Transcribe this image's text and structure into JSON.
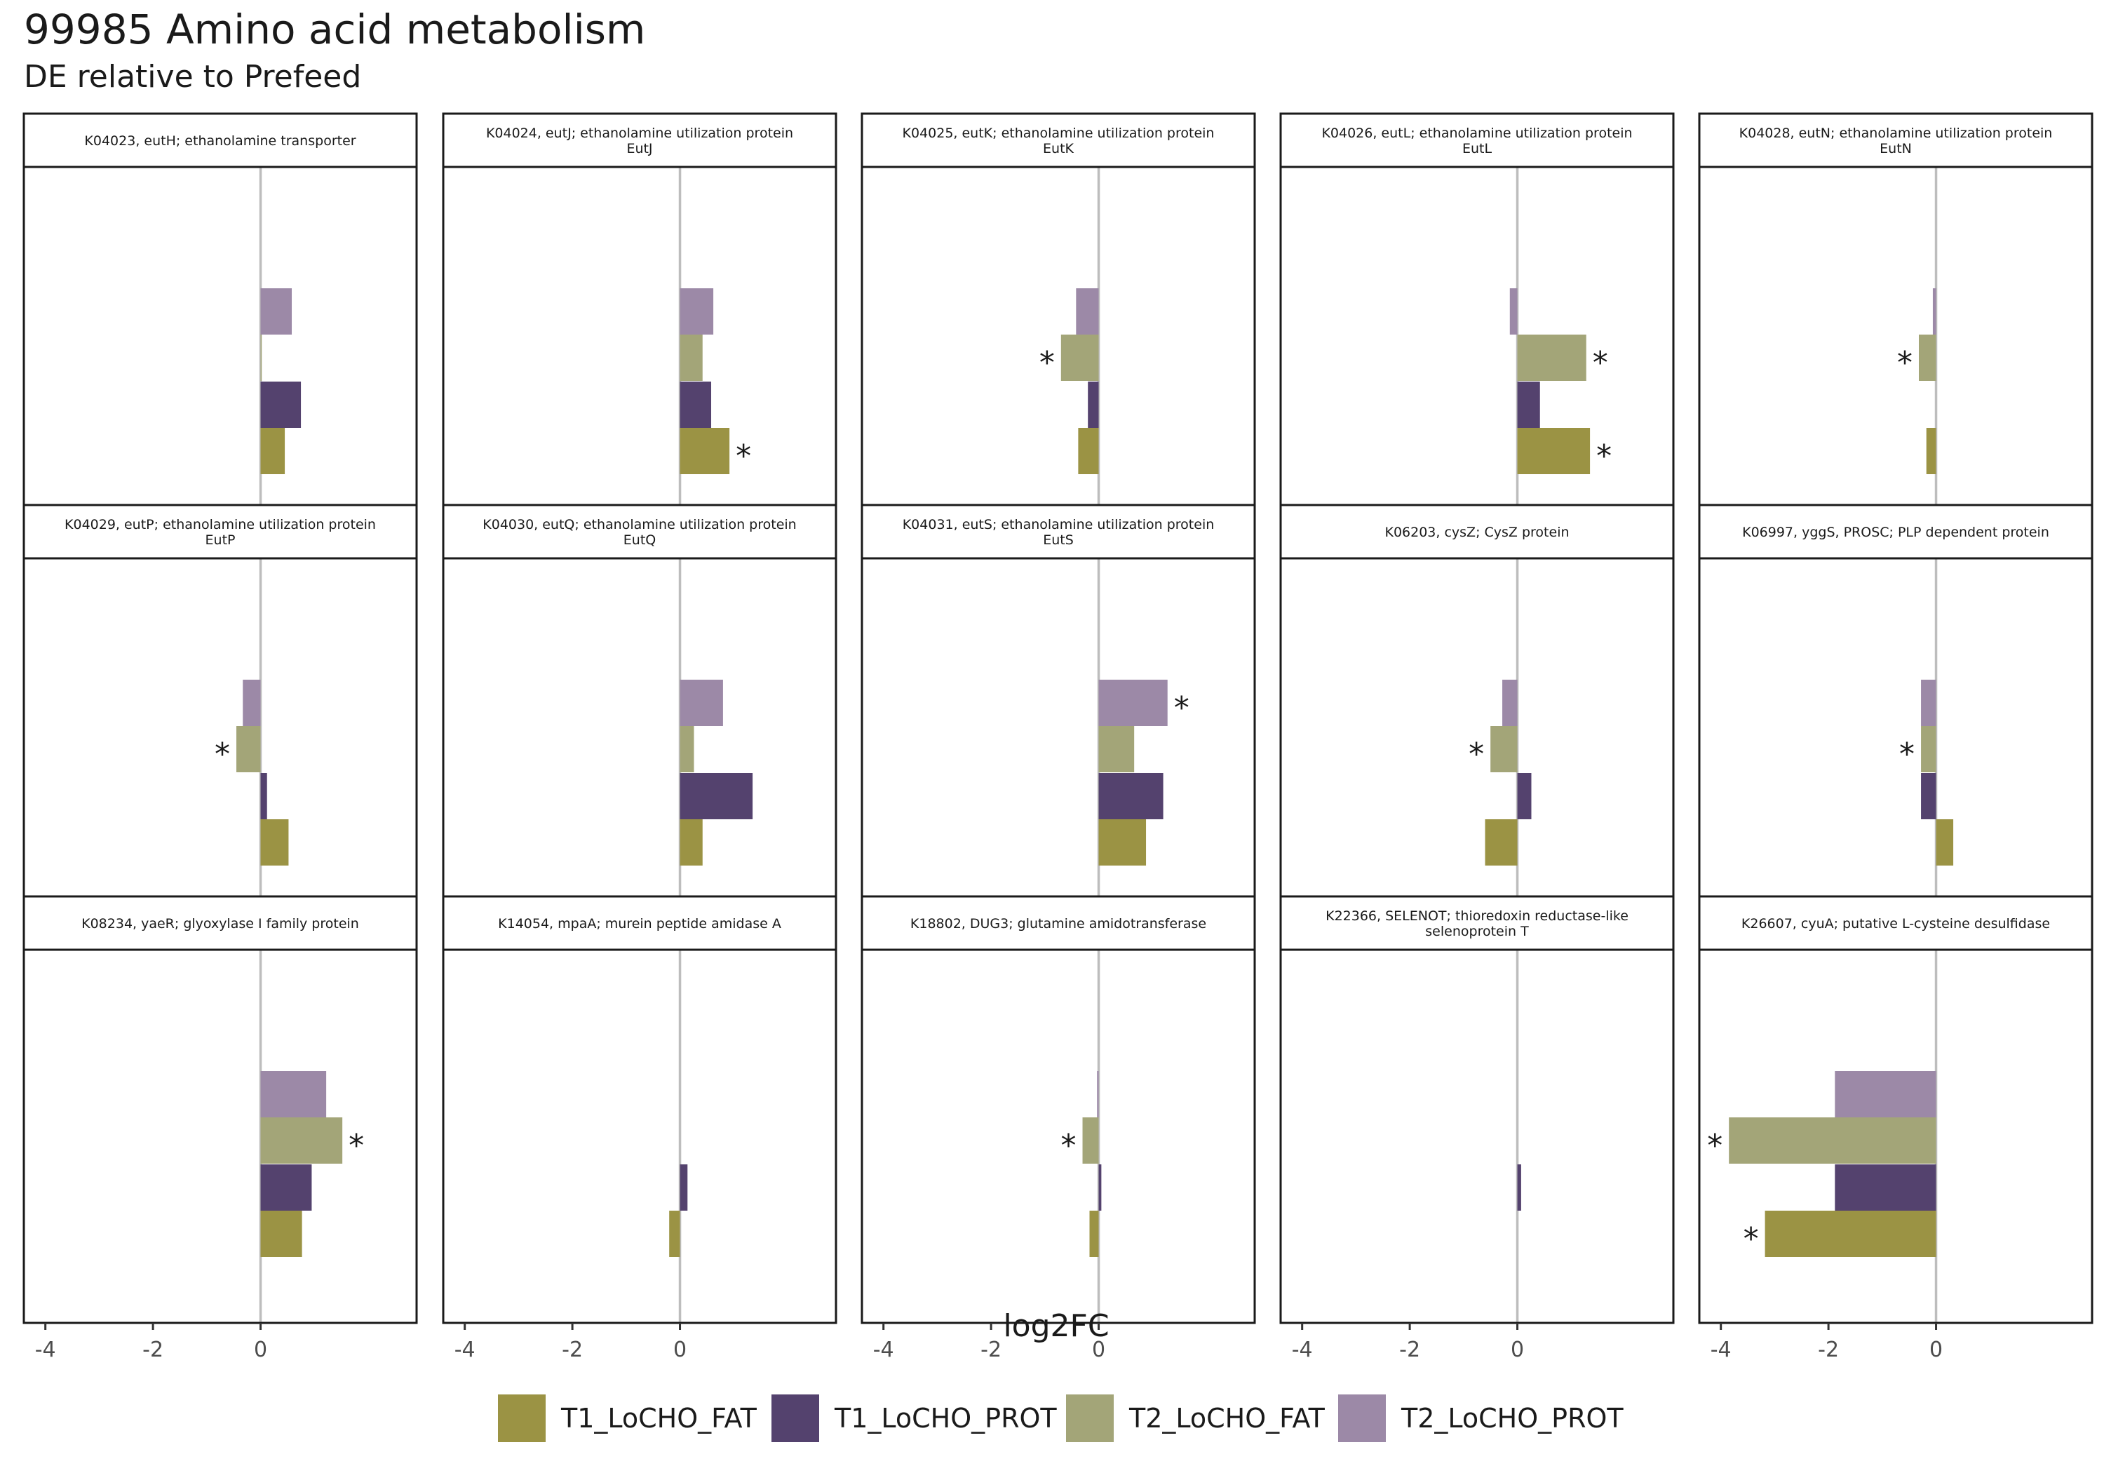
{
  "title": "99985 Amino acid metabolism",
  "subtitle": "DE relative to Prefeed",
  "chart_data": {
    "type": "bar",
    "orientation": "horizontal",
    "facet_layout": "3 rows x 5 columns",
    "xlabel": "log2FC",
    "ylabel": "",
    "xlim": [
      -4.4,
      2.9
    ],
    "x_ticks": [
      -4,
      -2,
      0
    ],
    "reference_line": 0,
    "grid": false,
    "legend_position": "bottom",
    "series_names": [
      "T1_LoCHO_FAT",
      "T1_LoCHO_PROT",
      "T2_LoCHO_FAT",
      "T2_LoCHO_PROT"
    ],
    "colors": {
      "T1_LoCHO_FAT": "#9b9344",
      "T1_LoCHO_PROT": "#54426e",
      "T2_LoCHO_FAT": "#a3a578",
      "T2_LoCHO_PROT": "#9c89a7"
    },
    "significance_marker": "*",
    "panels": [
      {
        "label": "K04023, eutH; ethanolamine transporter",
        "values": {
          "T1_LoCHO_FAT": 0.45,
          "T1_LoCHO_PROT": 0.75,
          "T2_LoCHO_FAT": 0.02,
          "T2_LoCHO_PROT": 0.58
        },
        "significant": []
      },
      {
        "label": "K04024, eutJ; ethanolamine utilization protein EutJ",
        "values": {
          "T1_LoCHO_FAT": 0.92,
          "T1_LoCHO_PROT": 0.58,
          "T2_LoCHO_FAT": 0.42,
          "T2_LoCHO_PROT": 0.62
        },
        "significant": [
          "T1_LoCHO_FAT"
        ]
      },
      {
        "label": "K04025, eutK; ethanolamine utilization protein EutK",
        "values": {
          "T1_LoCHO_FAT": -0.38,
          "T1_LoCHO_PROT": -0.2,
          "T2_LoCHO_FAT": -0.7,
          "T2_LoCHO_PROT": -0.42
        },
        "significant": [
          "T2_LoCHO_FAT"
        ]
      },
      {
        "label": "K04026, eutL; ethanolamine utilization protein EutL",
        "values": {
          "T1_LoCHO_FAT": 1.35,
          "T1_LoCHO_PROT": 0.42,
          "T2_LoCHO_FAT": 1.28,
          "T2_LoCHO_PROT": -0.14
        },
        "significant": [
          "T1_LoCHO_FAT",
          "T2_LoCHO_FAT"
        ]
      },
      {
        "label": "K04028, eutN; ethanolamine utilization protein EutN",
        "values": {
          "T1_LoCHO_FAT": -0.18,
          "T1_LoCHO_PROT": 0,
          "T2_LoCHO_FAT": -0.32,
          "T2_LoCHO_PROT": -0.06
        },
        "significant": [
          "T2_LoCHO_FAT"
        ]
      },
      {
        "label": "K04029, eutP; ethanolamine utilization protein EutP",
        "values": {
          "T1_LoCHO_FAT": 0.52,
          "T1_LoCHO_PROT": 0.12,
          "T2_LoCHO_FAT": -0.45,
          "T2_LoCHO_PROT": -0.33
        },
        "significant": [
          "T2_LoCHO_FAT"
        ]
      },
      {
        "label": "K04030, eutQ; ethanolamine utilization protein EutQ",
        "values": {
          "T1_LoCHO_FAT": 0.42,
          "T1_LoCHO_PROT": 1.35,
          "T2_LoCHO_FAT": 0.26,
          "T2_LoCHO_PROT": 0.8
        },
        "significant": []
      },
      {
        "label": "K04031, eutS; ethanolamine utilization protein EutS",
        "values": {
          "T1_LoCHO_FAT": 0.88,
          "T1_LoCHO_PROT": 1.2,
          "T2_LoCHO_FAT": 0.66,
          "T2_LoCHO_PROT": 1.28
        },
        "significant": [
          "T2_LoCHO_PROT"
        ]
      },
      {
        "label": "K06203, cysZ; CysZ protein",
        "values": {
          "T1_LoCHO_FAT": -0.6,
          "T1_LoCHO_PROT": 0.26,
          "T2_LoCHO_FAT": -0.5,
          "T2_LoCHO_PROT": -0.28
        },
        "significant": [
          "T2_LoCHO_FAT"
        ]
      },
      {
        "label": "K06997, yggS, PROSC; PLP dependent protein",
        "values": {
          "T1_LoCHO_FAT": 0.32,
          "T1_LoCHO_PROT": -0.28,
          "T2_LoCHO_FAT": -0.28,
          "T2_LoCHO_PROT": -0.28
        },
        "significant": [
          "T2_LoCHO_FAT"
        ]
      },
      {
        "label": "K08234, yaeR; glyoxylase I family protein",
        "values": {
          "T1_LoCHO_FAT": 0.77,
          "T1_LoCHO_PROT": 0.95,
          "T2_LoCHO_FAT": 1.52,
          "T2_LoCHO_PROT": 1.22
        },
        "significant": [
          "T2_LoCHO_FAT"
        ]
      },
      {
        "label": "K14054, mpaA; murein peptide amidase A",
        "values": {
          "T1_LoCHO_FAT": -0.2,
          "T1_LoCHO_PROT": 0.14,
          "T2_LoCHO_FAT": 0,
          "T2_LoCHO_PROT": 0
        },
        "significant": []
      },
      {
        "label": "K18802, DUG3; glutamine amidotransferase",
        "values": {
          "T1_LoCHO_FAT": -0.17,
          "T1_LoCHO_PROT": 0.05,
          "T2_LoCHO_FAT": -0.3,
          "T2_LoCHO_PROT": -0.03
        },
        "significant": [
          "T2_LoCHO_FAT"
        ]
      },
      {
        "label": "K22366, SELENOT; thioredoxin reductase-like selenoprotein T",
        "values": {
          "T1_LoCHO_FAT": 0,
          "T1_LoCHO_PROT": 0.07,
          "T2_LoCHO_FAT": 0,
          "T2_LoCHO_PROT": 0
        },
        "significant": []
      },
      {
        "label": "K26607, cyuA; putative L-cysteine desulfidase",
        "values": {
          "T1_LoCHO_FAT": -3.18,
          "T1_LoCHO_PROT": -1.88,
          "T2_LoCHO_FAT": -3.85,
          "T2_LoCHO_PROT": -1.88
        },
        "significant": [
          "T1_LoCHO_FAT",
          "T2_LoCHO_FAT"
        ]
      }
    ]
  }
}
